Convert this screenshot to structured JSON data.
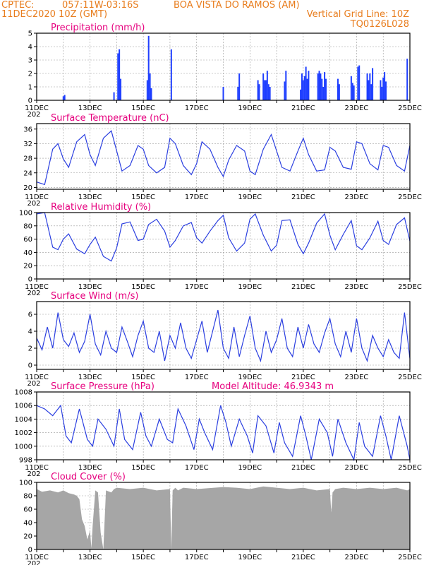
{
  "header": {
    "line1_left": "CPTEC:",
    "line1_coords": "057:11W-03:16S",
    "line1_station": "BOA VISTA DO RAMOS (AM)",
    "line2_left": "11DEC2020 10Z (GMT)",
    "line2_right": "Vertical Grid Line: 10Z",
    "line3_right": "TQ0126L028"
  },
  "colors": {
    "header": "#e87d1e",
    "title": "#e6007e",
    "line": "#2b3fe0",
    "bar": "#1f3fff",
    "cloud": "#a6a6a6"
  },
  "x_axis": {
    "labels": [
      "11DEC",
      "13DEC",
      "15DEC",
      "17DEC",
      "19DEC",
      "21DEC",
      "23DEC",
      "25DEC"
    ],
    "partial_label": "202"
  },
  "chart_data": [
    {
      "id": "precip",
      "type": "bar",
      "title": "Precipitation (mm/h)",
      "ylim": [
        0,
        5
      ],
      "yticks": [
        0,
        1,
        2,
        3,
        4,
        5
      ],
      "points": [
        [
          1.0,
          0.3
        ],
        [
          1.05,
          0.4
        ],
        [
          2.9,
          0.6
        ],
        [
          3.05,
          3.5
        ],
        [
          3.1,
          3.8
        ],
        [
          3.15,
          1.6
        ],
        [
          4.15,
          1.5
        ],
        [
          4.2,
          4.8
        ],
        [
          4.25,
          2.0
        ],
        [
          4.3,
          0.9
        ],
        [
          5.05,
          3.8
        ],
        [
          7.0,
          1.0
        ],
        [
          7.55,
          1.0
        ],
        [
          7.6,
          2.0
        ],
        [
          8.3,
          1.5
        ],
        [
          8.35,
          1.2
        ],
        [
          8.5,
          2.0
        ],
        [
          8.55,
          1.5
        ],
        [
          8.6,
          1.5
        ],
        [
          8.65,
          2.2
        ],
        [
          8.7,
          1.2
        ],
        [
          8.75,
          1.0
        ],
        [
          9.3,
          1.4
        ],
        [
          9.35,
          2.2
        ],
        [
          9.9,
          0.8
        ],
        [
          9.95,
          2.0
        ],
        [
          10.0,
          1.5
        ],
        [
          10.05,
          1.8
        ],
        [
          10.1,
          2.5
        ],
        [
          10.15,
          1.6
        ],
        [
          10.2,
          2.2
        ],
        [
          10.55,
          2.0
        ],
        [
          10.6,
          2.2
        ],
        [
          10.65,
          2.0
        ],
        [
          10.7,
          1.6
        ],
        [
          10.75,
          1.0
        ],
        [
          10.8,
          2.1
        ],
        [
          10.85,
          1.6
        ],
        [
          11.3,
          1.6
        ],
        [
          11.35,
          1.2
        ],
        [
          11.8,
          1.8
        ],
        [
          11.85,
          1.3
        ],
        [
          11.9,
          1.1
        ],
        [
          12.05,
          2.5
        ],
        [
          12.1,
          2.6
        ],
        [
          12.4,
          2.0
        ],
        [
          12.45,
          1.5
        ],
        [
          12.5,
          2.0
        ],
        [
          12.55,
          1.2
        ],
        [
          12.6,
          2.4
        ],
        [
          12.9,
          1.5
        ],
        [
          12.95,
          1.0
        ],
        [
          13.0,
          1.7
        ],
        [
          13.05,
          2.1
        ],
        [
          13.1,
          1.4
        ],
        [
          13.9,
          3.1
        ]
      ]
    },
    {
      "id": "temp",
      "type": "line",
      "title": "Surface Temperature (nC)",
      "ylim": [
        19.5,
        37.5
      ],
      "yticks": [
        20,
        24,
        28,
        32,
        36
      ],
      "x": [
        0,
        0.3,
        0.6,
        0.8,
        1.0,
        1.2,
        1.5,
        1.8,
        2.0,
        2.2,
        2.5,
        2.8,
        3.0,
        3.2,
        3.5,
        3.8,
        4.0,
        4.2,
        4.5,
        4.8,
        5.0,
        5.2,
        5.5,
        5.8,
        6.0,
        6.2,
        6.5,
        6.8,
        7.0,
        7.2,
        7.5,
        7.8,
        8.0,
        8.2,
        8.5,
        8.8,
        9.0,
        9.2,
        9.5,
        9.8,
        10.0,
        10.2,
        10.5,
        10.8,
        11.0,
        11.2,
        11.5,
        11.8,
        12.0,
        12.2,
        12.5,
        12.8,
        13.0,
        13.2,
        13.5,
        13.8,
        14.0
      ],
      "values": [
        21.5,
        20.8,
        30.5,
        32.0,
        27.8,
        25.5,
        32.5,
        34.5,
        29.0,
        26.0,
        33.5,
        35.5,
        30.0,
        24.5,
        26.0,
        31.5,
        30.5,
        26.0,
        24.0,
        25.5,
        33.5,
        32.0,
        26.0,
        23.5,
        26.5,
        32.5,
        30.5,
        25.5,
        23.0,
        27.5,
        31.5,
        30.0,
        24.5,
        23.5,
        30.5,
        34.5,
        30.0,
        25.5,
        24.5,
        30.0,
        33.5,
        29.0,
        24.5,
        24.8,
        31.0,
        30.0,
        25.5,
        25.0,
        32.5,
        32.0,
        26.5,
        24.8,
        31.5,
        31.0,
        26.0,
        24.5,
        31.5
      ]
    },
    {
      "id": "rh",
      "type": "line",
      "title": "Relative Humidity (%)",
      "ylim": [
        0,
        100
      ],
      "yticks": [
        0,
        20,
        40,
        60,
        80,
        100
      ],
      "x": [
        0,
        0.3,
        0.6,
        0.8,
        1.0,
        1.2,
        1.5,
        1.8,
        2.0,
        2.2,
        2.5,
        2.8,
        3.0,
        3.2,
        3.5,
        3.8,
        4.0,
        4.2,
        4.5,
        4.8,
        5.0,
        5.2,
        5.5,
        5.8,
        6.0,
        6.2,
        6.5,
        6.8,
        7.0,
        7.2,
        7.5,
        7.8,
        8.0,
        8.2,
        8.5,
        8.8,
        9.0,
        9.2,
        9.5,
        9.8,
        10.0,
        10.2,
        10.5,
        10.8,
        11.0,
        11.2,
        11.5,
        11.8,
        12.0,
        12.2,
        12.5,
        12.8,
        13.0,
        13.2,
        13.5,
        13.8,
        14.0
      ],
      "values": [
        98,
        100,
        48,
        44,
        60,
        68,
        45,
        38,
        52,
        63,
        34,
        27,
        47,
        83,
        86,
        58,
        60,
        82,
        90,
        72,
        48,
        58,
        80,
        85,
        62,
        54,
        72,
        88,
        96,
        62,
        42,
        54,
        90,
        98,
        66,
        42,
        51,
        88,
        89,
        52,
        38,
        54,
        84,
        98,
        66,
        44,
        67,
        88,
        50,
        44,
        62,
        87,
        58,
        52,
        82,
        92,
        57
      ]
    },
    {
      "id": "wind",
      "type": "line",
      "title": "Surface Wind (m/s)",
      "ylim": [
        -0.5,
        7.5
      ],
      "yticks": [
        0,
        2,
        4,
        6
      ],
      "x": [
        0,
        0.2,
        0.4,
        0.6,
        0.8,
        1.0,
        1.2,
        1.4,
        1.6,
        1.8,
        2.0,
        2.2,
        2.4,
        2.6,
        2.8,
        3.0,
        3.2,
        3.4,
        3.6,
        3.8,
        4.0,
        4.2,
        4.4,
        4.6,
        4.8,
        5.0,
        5.2,
        5.4,
        5.6,
        5.8,
        6.0,
        6.2,
        6.4,
        6.6,
        6.8,
        7.0,
        7.2,
        7.4,
        7.6,
        7.8,
        8.0,
        8.2,
        8.4,
        8.6,
        8.8,
        9.0,
        9.2,
        9.4,
        9.6,
        9.8,
        10.0,
        10.2,
        10.4,
        10.6,
        10.8,
        11.0,
        11.2,
        11.4,
        11.6,
        11.8,
        12.0,
        12.2,
        12.4,
        12.6,
        12.8,
        13.0,
        13.2,
        13.4,
        13.6,
        13.8,
        14.0
      ],
      "values": [
        3.2,
        1.8,
        4.5,
        2.0,
        6.2,
        3.0,
        2.2,
        3.8,
        1.5,
        2.8,
        6.0,
        2.5,
        1.2,
        4.0,
        2.0,
        1.5,
        4.5,
        2.8,
        1.0,
        3.5,
        5.2,
        2.0,
        1.5,
        4.0,
        0.5,
        3.5,
        2.0,
        5.0,
        2.0,
        0.8,
        3.0,
        5.2,
        1.5,
        4.0,
        6.5,
        2.0,
        0.8,
        4.5,
        1.0,
        3.5,
        5.8,
        2.0,
        0.5,
        4.0,
        1.5,
        3.0,
        5.5,
        2.0,
        1.0,
        4.5,
        2.0,
        4.8,
        2.5,
        1.5,
        3.8,
        5.5,
        2.5,
        1.0,
        4.0,
        1.5,
        5.5,
        2.0,
        0.5,
        3.5,
        2.0,
        1.0,
        3.0,
        1.5,
        0.8,
        6.2,
        0.8
      ]
    },
    {
      "id": "pressure",
      "type": "line",
      "title": "Surface Pressure (hPa)",
      "annotation": "Model Altitude: 46.9343 m",
      "ylim": [
        998,
        1008
      ],
      "yticks": [
        998,
        1000,
        1002,
        1004,
        1006,
        1008
      ],
      "x": [
        0,
        0.3,
        0.6,
        0.9,
        1.1,
        1.3,
        1.6,
        1.9,
        2.1,
        2.3,
        2.6,
        2.9,
        3.1,
        3.3,
        3.6,
        3.9,
        4.1,
        4.3,
        4.6,
        4.9,
        5.1,
        5.3,
        5.6,
        5.9,
        6.1,
        6.3,
        6.6,
        6.9,
        7.1,
        7.3,
        7.6,
        7.9,
        8.1,
        8.3,
        8.6,
        8.9,
        9.1,
        9.3,
        9.6,
        9.9,
        10.1,
        10.3,
        10.6,
        10.9,
        11.1,
        11.3,
        11.6,
        11.9,
        12.1,
        12.3,
        12.6,
        12.9,
        13.1,
        13.3,
        13.6,
        13.9,
        14.0
      ],
      "values": [
        1006.0,
        1005.5,
        1004.5,
        1006.0,
        1001.5,
        1000.5,
        1005.5,
        1001.0,
        1000.0,
        1004.0,
        1002.5,
        1000.0,
        1005.5,
        1001.0,
        999.5,
        1005.0,
        1001.5,
        1000.0,
        1004.0,
        1001.0,
        1000.5,
        1005.5,
        1003.0,
        999.5,
        1004.0,
        1002.0,
        999.5,
        1006.0,
        1003.5,
        1000.0,
        1004.0,
        1001.5,
        999.0,
        1004.5,
        1003.0,
        999.0,
        1003.5,
        1000.5,
        998.5,
        1004.5,
        1001.5,
        998.0,
        1004.0,
        1002.0,
        998.5,
        1004.0,
        1000.5,
        998.0,
        1003.5,
        1000.0,
        998.5,
        1004.5,
        1001.5,
        998.0,
        1004.5,
        1000.0,
        998.0
      ]
    },
    {
      "id": "cloud",
      "type": "area",
      "title": "Cloud Cover (%)",
      "ylim": [
        0,
        100
      ],
      "yticks": [
        0,
        20,
        40,
        60,
        80,
        100
      ],
      "x": [
        0,
        0.2,
        0.5,
        0.8,
        1.0,
        1.2,
        1.4,
        1.5,
        1.6,
        1.7,
        1.8,
        1.9,
        2.0,
        2.05,
        2.1,
        2.2,
        2.3,
        2.4,
        2.5,
        2.6,
        2.8,
        2.9,
        3.0,
        3.5,
        4.0,
        4.5,
        5.0,
        5.05,
        5.1,
        5.2,
        5.3,
        5.5,
        6.0,
        7.0,
        7.5,
        8.0,
        8.5,
        9.0,
        9.5,
        10.0,
        10.5,
        11.0,
        11.05,
        11.1,
        11.2,
        11.5,
        12.0,
        12.5,
        13.0,
        13.5,
        13.9,
        14.0
      ],
      "values": [
        90,
        86,
        88,
        85,
        88,
        84,
        82,
        80,
        75,
        45,
        35,
        15,
        28,
        2,
        35,
        88,
        85,
        25,
        0,
        88,
        85,
        90,
        92,
        90,
        92,
        88,
        90,
        0,
        88,
        92,
        88,
        92,
        90,
        93,
        92,
        90,
        94,
        92,
        90,
        92,
        88,
        90,
        55,
        85,
        90,
        92,
        90,
        92,
        90,
        92,
        88,
        90
      ]
    }
  ]
}
